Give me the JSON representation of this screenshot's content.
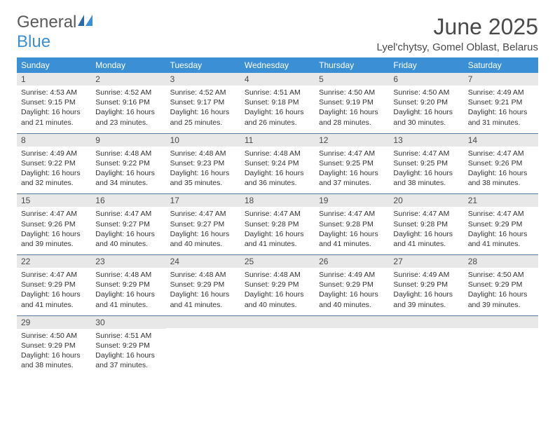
{
  "brand": {
    "general": "General",
    "blue": "Blue"
  },
  "title": "June 2025",
  "location": "Lyel'chytsy, Gomel Oblast, Belarus",
  "colors": {
    "header_bg": "#3b8fd4",
    "header_text": "#ffffff",
    "daynum_bg": "#e8e8e8",
    "divider": "#5a7a9a",
    "text": "#333333",
    "title_text": "#4a4a4a",
    "brand_blue": "#3b8fd4",
    "brand_gray": "#5a5a5a"
  },
  "typography": {
    "title_fontsize": 32,
    "location_fontsize": 15,
    "dayheader_fontsize": 12,
    "daynum_fontsize": 12,
    "body_fontsize": 10.5
  },
  "day_headers": [
    "Sunday",
    "Monday",
    "Tuesday",
    "Wednesday",
    "Thursday",
    "Friday",
    "Saturday"
  ],
  "weeks": [
    [
      {
        "num": "1",
        "sunrise": "Sunrise: 4:53 AM",
        "sunset": "Sunset: 9:15 PM",
        "daylight": "Daylight: 16 hours and 21 minutes."
      },
      {
        "num": "2",
        "sunrise": "Sunrise: 4:52 AM",
        "sunset": "Sunset: 9:16 PM",
        "daylight": "Daylight: 16 hours and 23 minutes."
      },
      {
        "num": "3",
        "sunrise": "Sunrise: 4:52 AM",
        "sunset": "Sunset: 9:17 PM",
        "daylight": "Daylight: 16 hours and 25 minutes."
      },
      {
        "num": "4",
        "sunrise": "Sunrise: 4:51 AM",
        "sunset": "Sunset: 9:18 PM",
        "daylight": "Daylight: 16 hours and 26 minutes."
      },
      {
        "num": "5",
        "sunrise": "Sunrise: 4:50 AM",
        "sunset": "Sunset: 9:19 PM",
        "daylight": "Daylight: 16 hours and 28 minutes."
      },
      {
        "num": "6",
        "sunrise": "Sunrise: 4:50 AM",
        "sunset": "Sunset: 9:20 PM",
        "daylight": "Daylight: 16 hours and 30 minutes."
      },
      {
        "num": "7",
        "sunrise": "Sunrise: 4:49 AM",
        "sunset": "Sunset: 9:21 PM",
        "daylight": "Daylight: 16 hours and 31 minutes."
      }
    ],
    [
      {
        "num": "8",
        "sunrise": "Sunrise: 4:49 AM",
        "sunset": "Sunset: 9:22 PM",
        "daylight": "Daylight: 16 hours and 32 minutes."
      },
      {
        "num": "9",
        "sunrise": "Sunrise: 4:48 AM",
        "sunset": "Sunset: 9:22 PM",
        "daylight": "Daylight: 16 hours and 34 minutes."
      },
      {
        "num": "10",
        "sunrise": "Sunrise: 4:48 AM",
        "sunset": "Sunset: 9:23 PM",
        "daylight": "Daylight: 16 hours and 35 minutes."
      },
      {
        "num": "11",
        "sunrise": "Sunrise: 4:48 AM",
        "sunset": "Sunset: 9:24 PM",
        "daylight": "Daylight: 16 hours and 36 minutes."
      },
      {
        "num": "12",
        "sunrise": "Sunrise: 4:47 AM",
        "sunset": "Sunset: 9:25 PM",
        "daylight": "Daylight: 16 hours and 37 minutes."
      },
      {
        "num": "13",
        "sunrise": "Sunrise: 4:47 AM",
        "sunset": "Sunset: 9:25 PM",
        "daylight": "Daylight: 16 hours and 38 minutes."
      },
      {
        "num": "14",
        "sunrise": "Sunrise: 4:47 AM",
        "sunset": "Sunset: 9:26 PM",
        "daylight": "Daylight: 16 hours and 38 minutes."
      }
    ],
    [
      {
        "num": "15",
        "sunrise": "Sunrise: 4:47 AM",
        "sunset": "Sunset: 9:26 PM",
        "daylight": "Daylight: 16 hours and 39 minutes."
      },
      {
        "num": "16",
        "sunrise": "Sunrise: 4:47 AM",
        "sunset": "Sunset: 9:27 PM",
        "daylight": "Daylight: 16 hours and 40 minutes."
      },
      {
        "num": "17",
        "sunrise": "Sunrise: 4:47 AM",
        "sunset": "Sunset: 9:27 PM",
        "daylight": "Daylight: 16 hours and 40 minutes."
      },
      {
        "num": "18",
        "sunrise": "Sunrise: 4:47 AM",
        "sunset": "Sunset: 9:28 PM",
        "daylight": "Daylight: 16 hours and 41 minutes."
      },
      {
        "num": "19",
        "sunrise": "Sunrise: 4:47 AM",
        "sunset": "Sunset: 9:28 PM",
        "daylight": "Daylight: 16 hours and 41 minutes."
      },
      {
        "num": "20",
        "sunrise": "Sunrise: 4:47 AM",
        "sunset": "Sunset: 9:28 PM",
        "daylight": "Daylight: 16 hours and 41 minutes."
      },
      {
        "num": "21",
        "sunrise": "Sunrise: 4:47 AM",
        "sunset": "Sunset: 9:29 PM",
        "daylight": "Daylight: 16 hours and 41 minutes."
      }
    ],
    [
      {
        "num": "22",
        "sunrise": "Sunrise: 4:47 AM",
        "sunset": "Sunset: 9:29 PM",
        "daylight": "Daylight: 16 hours and 41 minutes."
      },
      {
        "num": "23",
        "sunrise": "Sunrise: 4:48 AM",
        "sunset": "Sunset: 9:29 PM",
        "daylight": "Daylight: 16 hours and 41 minutes."
      },
      {
        "num": "24",
        "sunrise": "Sunrise: 4:48 AM",
        "sunset": "Sunset: 9:29 PM",
        "daylight": "Daylight: 16 hours and 41 minutes."
      },
      {
        "num": "25",
        "sunrise": "Sunrise: 4:48 AM",
        "sunset": "Sunset: 9:29 PM",
        "daylight": "Daylight: 16 hours and 40 minutes."
      },
      {
        "num": "26",
        "sunrise": "Sunrise: 4:49 AM",
        "sunset": "Sunset: 9:29 PM",
        "daylight": "Daylight: 16 hours and 40 minutes."
      },
      {
        "num": "27",
        "sunrise": "Sunrise: 4:49 AM",
        "sunset": "Sunset: 9:29 PM",
        "daylight": "Daylight: 16 hours and 39 minutes."
      },
      {
        "num": "28",
        "sunrise": "Sunrise: 4:50 AM",
        "sunset": "Sunset: 9:29 PM",
        "daylight": "Daylight: 16 hours and 39 minutes."
      }
    ],
    [
      {
        "num": "29",
        "sunrise": "Sunrise: 4:50 AM",
        "sunset": "Sunset: 9:29 PM",
        "daylight": "Daylight: 16 hours and 38 minutes."
      },
      {
        "num": "30",
        "sunrise": "Sunrise: 4:51 AM",
        "sunset": "Sunset: 9:29 PM",
        "daylight": "Daylight: 16 hours and 37 minutes."
      },
      null,
      null,
      null,
      null,
      null
    ]
  ]
}
